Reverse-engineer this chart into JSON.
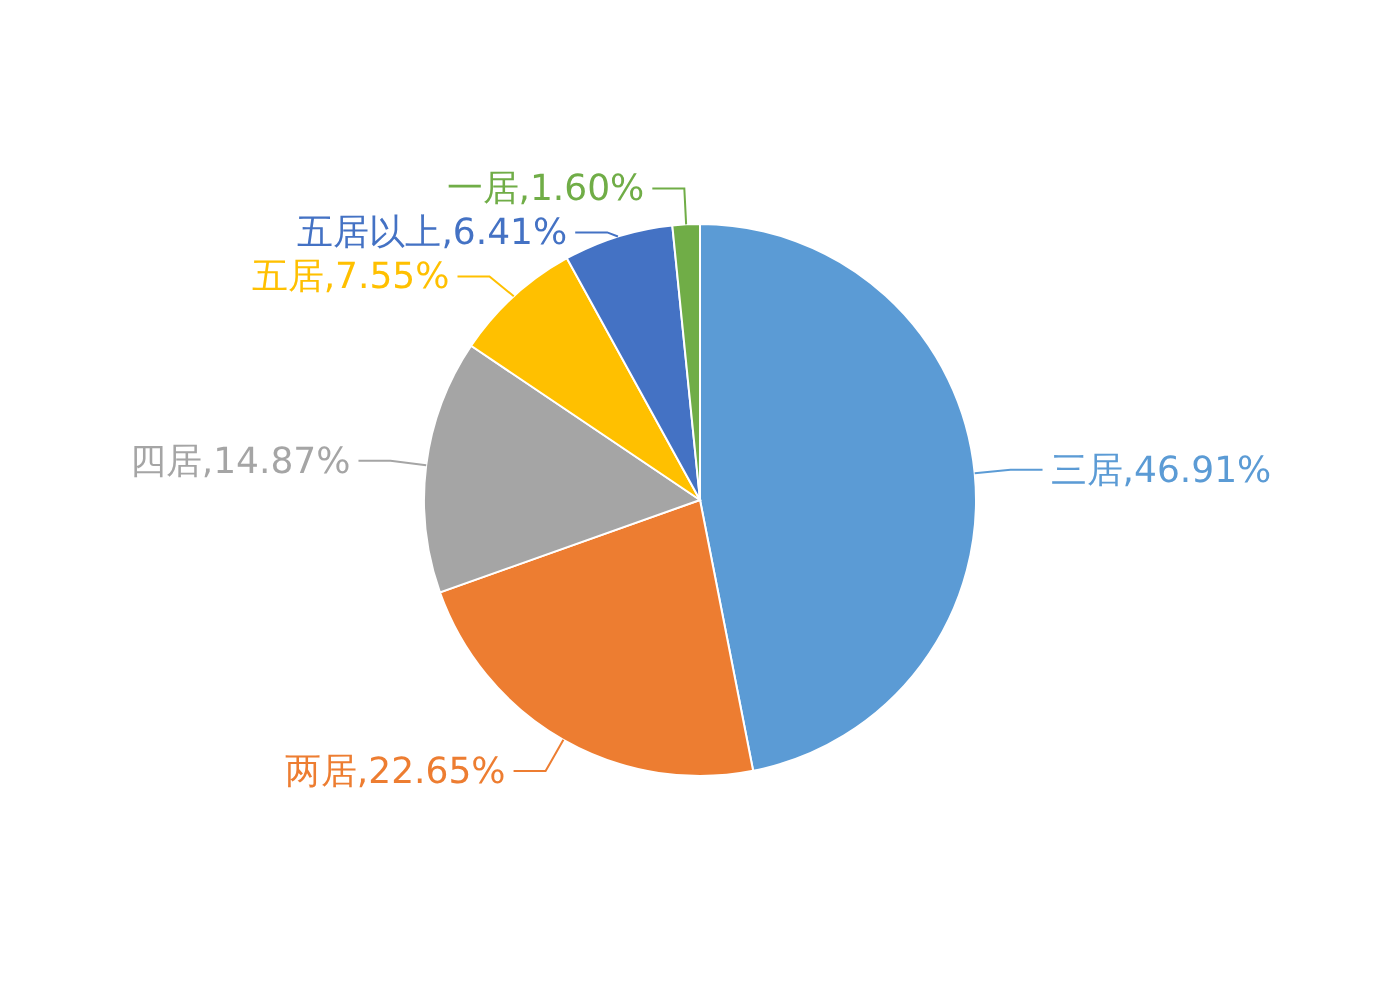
{
  "chart_data": {
    "type": "pie",
    "categories": [
      "三居",
      "两居",
      "四居",
      "五居",
      "五居以上",
      "一居"
    ],
    "values": [
      46.91,
      22.65,
      14.87,
      7.55,
      6.41,
      1.6
    ],
    "value_labels": [
      ",46.91%",
      ",22.65%",
      ",14.87%",
      ",7.55%",
      ",6.41%",
      ",1.60%"
    ],
    "colors": [
      "#5b9bd5",
      "#ed7d31",
      "#a5a5a5",
      "#ffc000",
      "#4472c4",
      "#70ad47"
    ],
    "legend": false
  }
}
